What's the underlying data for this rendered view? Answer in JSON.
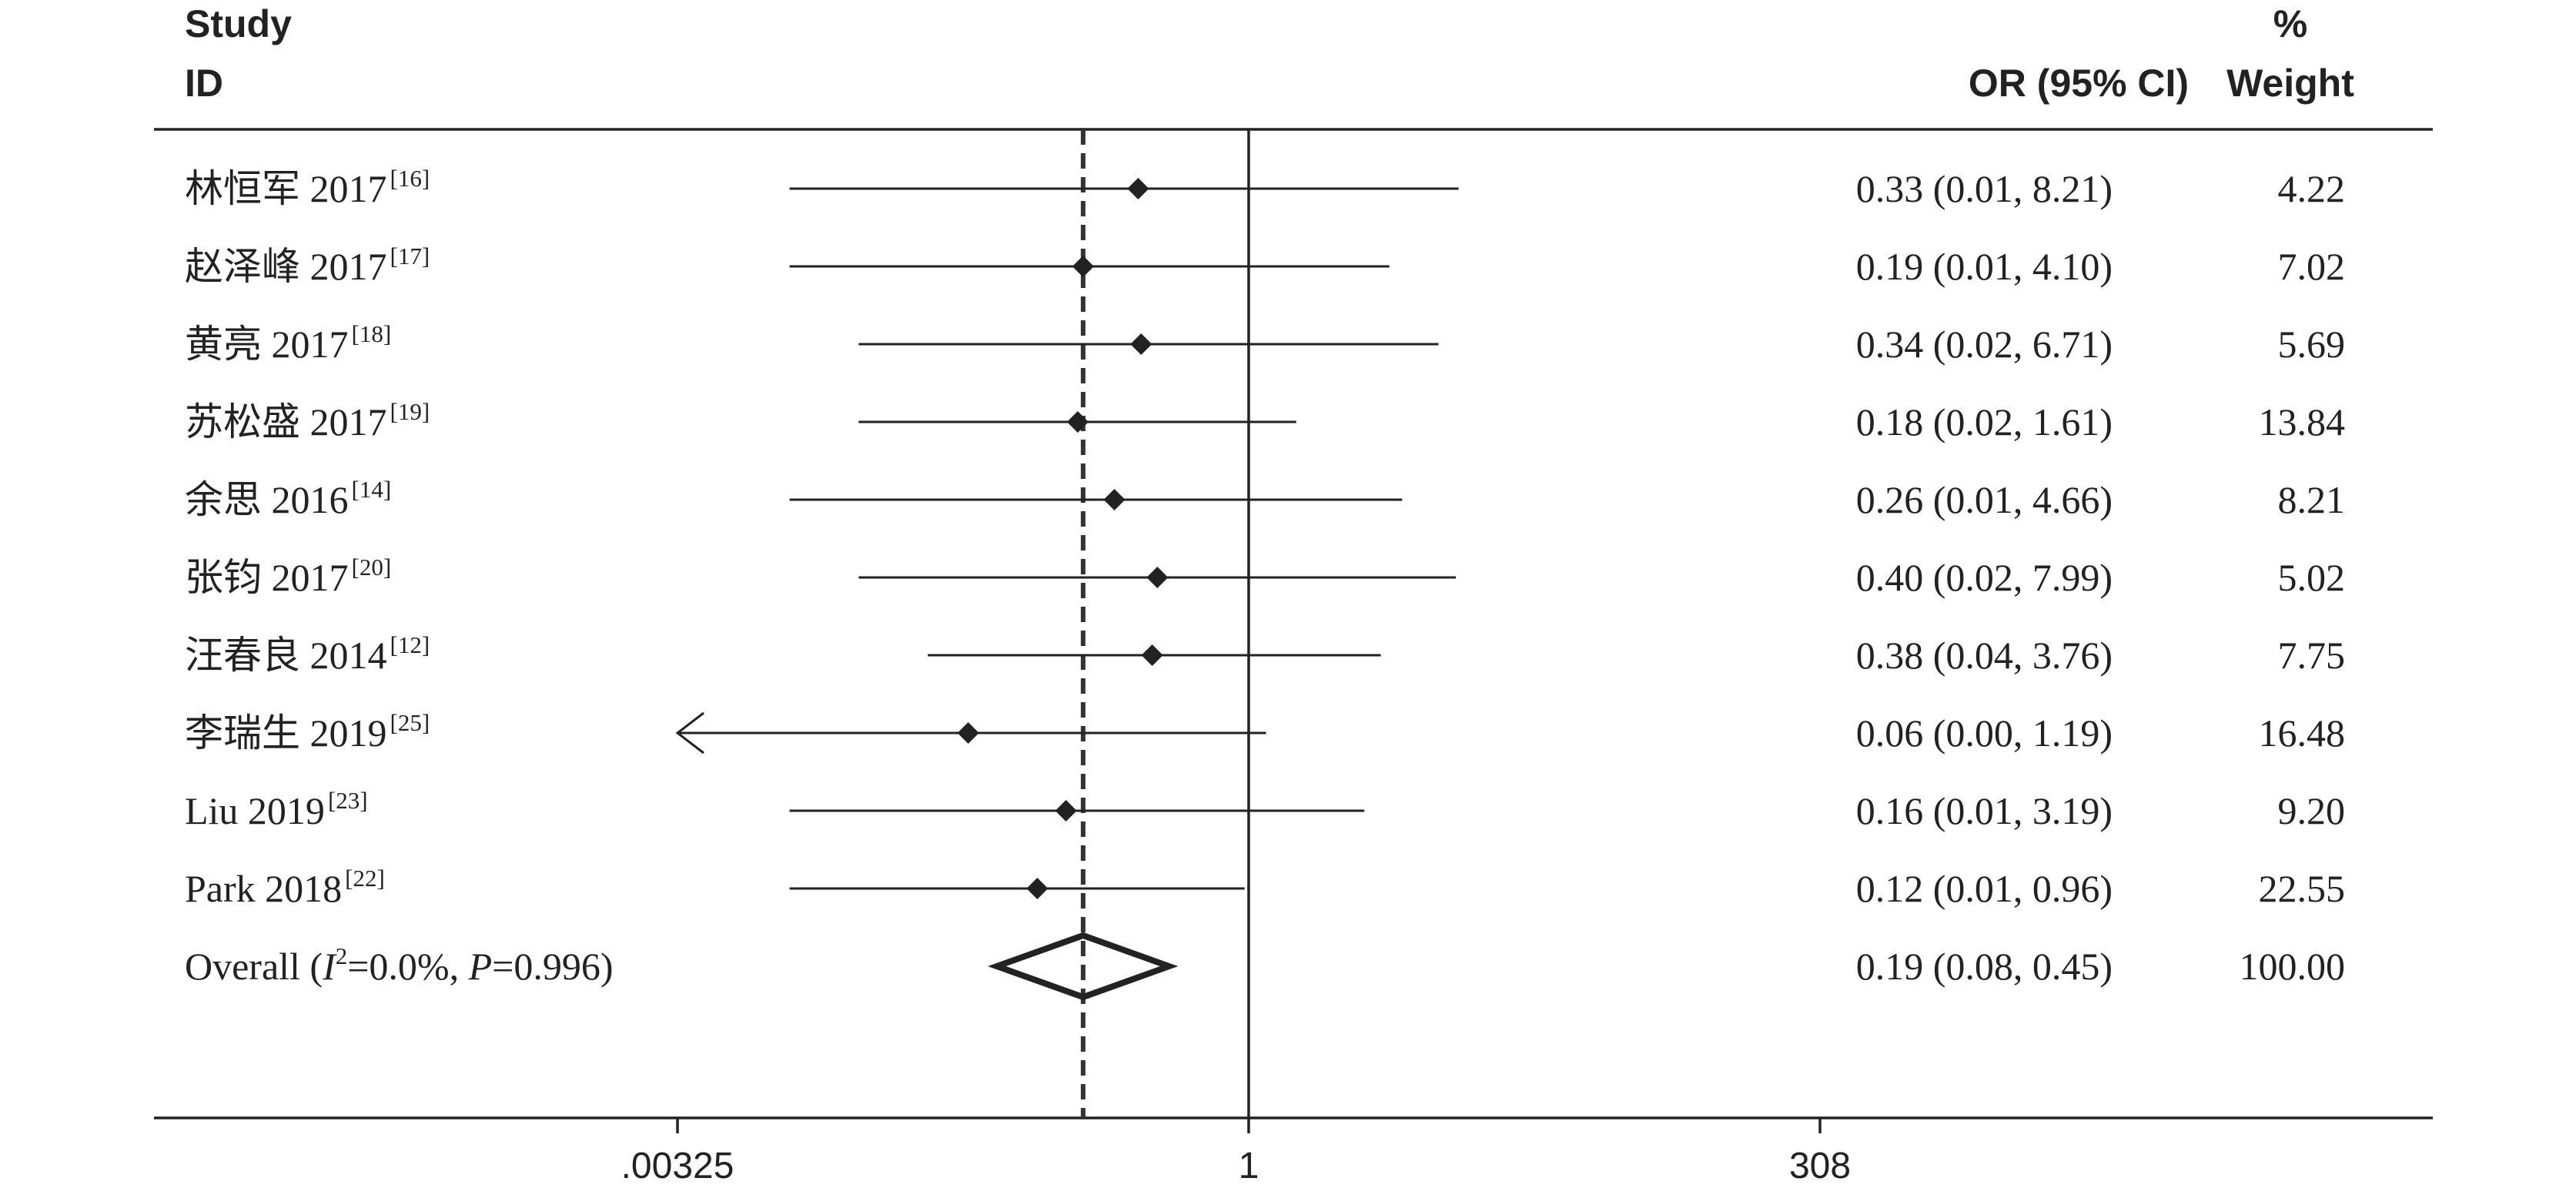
{
  "chart_data": {
    "type": "forest",
    "headers": {
      "study_line1": "Study",
      "study_line2": "ID",
      "ci": "OR (95% CI)",
      "weight_line1": "%",
      "weight_line2": "Weight"
    },
    "scale": "log",
    "xlim": [
      0.00325,
      308
    ],
    "x_ticks": [
      ".00325",
      "1",
      "308"
    ],
    "null_line": 1,
    "pooled_line": 0.19,
    "studies": [
      {
        "name": "林恒军 2017",
        "ref": "[16]",
        "or": 0.33,
        "lo": 0.01,
        "hi": 8.21,
        "ci_text": "0.33 (0.01, 8.21)",
        "weight": "4.22"
      },
      {
        "name": "赵泽峰 2017",
        "ref": "[17]",
        "or": 0.19,
        "lo": 0.01,
        "hi": 4.1,
        "ci_text": "0.19 (0.01, 4.10)",
        "weight": "7.02"
      },
      {
        "name": "黄亮 2017",
        "ref": "[18]",
        "or": 0.34,
        "lo": 0.02,
        "hi": 6.71,
        "ci_text": "0.34 (0.02, 6.71)",
        "weight": "5.69"
      },
      {
        "name": "苏松盛 2017",
        "ref": "[19]",
        "or": 0.18,
        "lo": 0.02,
        "hi": 1.61,
        "ci_text": "0.18 (0.02, 1.61)",
        "weight": "13.84"
      },
      {
        "name": "余思 2016",
        "ref": "[14]",
        "or": 0.26,
        "lo": 0.01,
        "hi": 4.66,
        "ci_text": "0.26 (0.01, 4.66)",
        "weight": "8.21"
      },
      {
        "name": "张钧 2017",
        "ref": "[20]",
        "or": 0.4,
        "lo": 0.02,
        "hi": 7.99,
        "ci_text": "0.40 (0.02, 7.99)",
        "weight": "5.02"
      },
      {
        "name": "汪春良 2014",
        "ref": "[12]",
        "or": 0.38,
        "lo": 0.04,
        "hi": 3.76,
        "ci_text": "0.38 (0.04, 3.76)",
        "weight": "7.75"
      },
      {
        "name": "李瑞生 2019",
        "ref": "[25]",
        "or": 0.06,
        "lo": 0.0,
        "hi": 1.19,
        "ci_text": "0.06 (0.00, 1.19)",
        "weight": "16.48",
        "arrow_left": true
      },
      {
        "name": "Liu 2019",
        "ref": "[23]",
        "or": 0.16,
        "lo": 0.01,
        "hi": 3.19,
        "ci_text": "0.16 (0.01, 3.19)",
        "weight": "9.20"
      },
      {
        "name": "Park 2018",
        "ref": "[22]",
        "or": 0.12,
        "lo": 0.01,
        "hi": 0.96,
        "ci_text": "0.12 (0.01, 0.96)",
        "weight": "22.55"
      }
    ],
    "overall": {
      "label_prefix": "Overall  (",
      "i_letter": "I",
      "i_sup": "2",
      "i_value": "=0.0%, ",
      "p_letter": "P",
      "p_value": "=0.996)",
      "or": 0.19,
      "lo": 0.08,
      "hi": 0.45,
      "ci_text": "0.19 (0.08, 0.45)",
      "weight": "100.00"
    }
  }
}
